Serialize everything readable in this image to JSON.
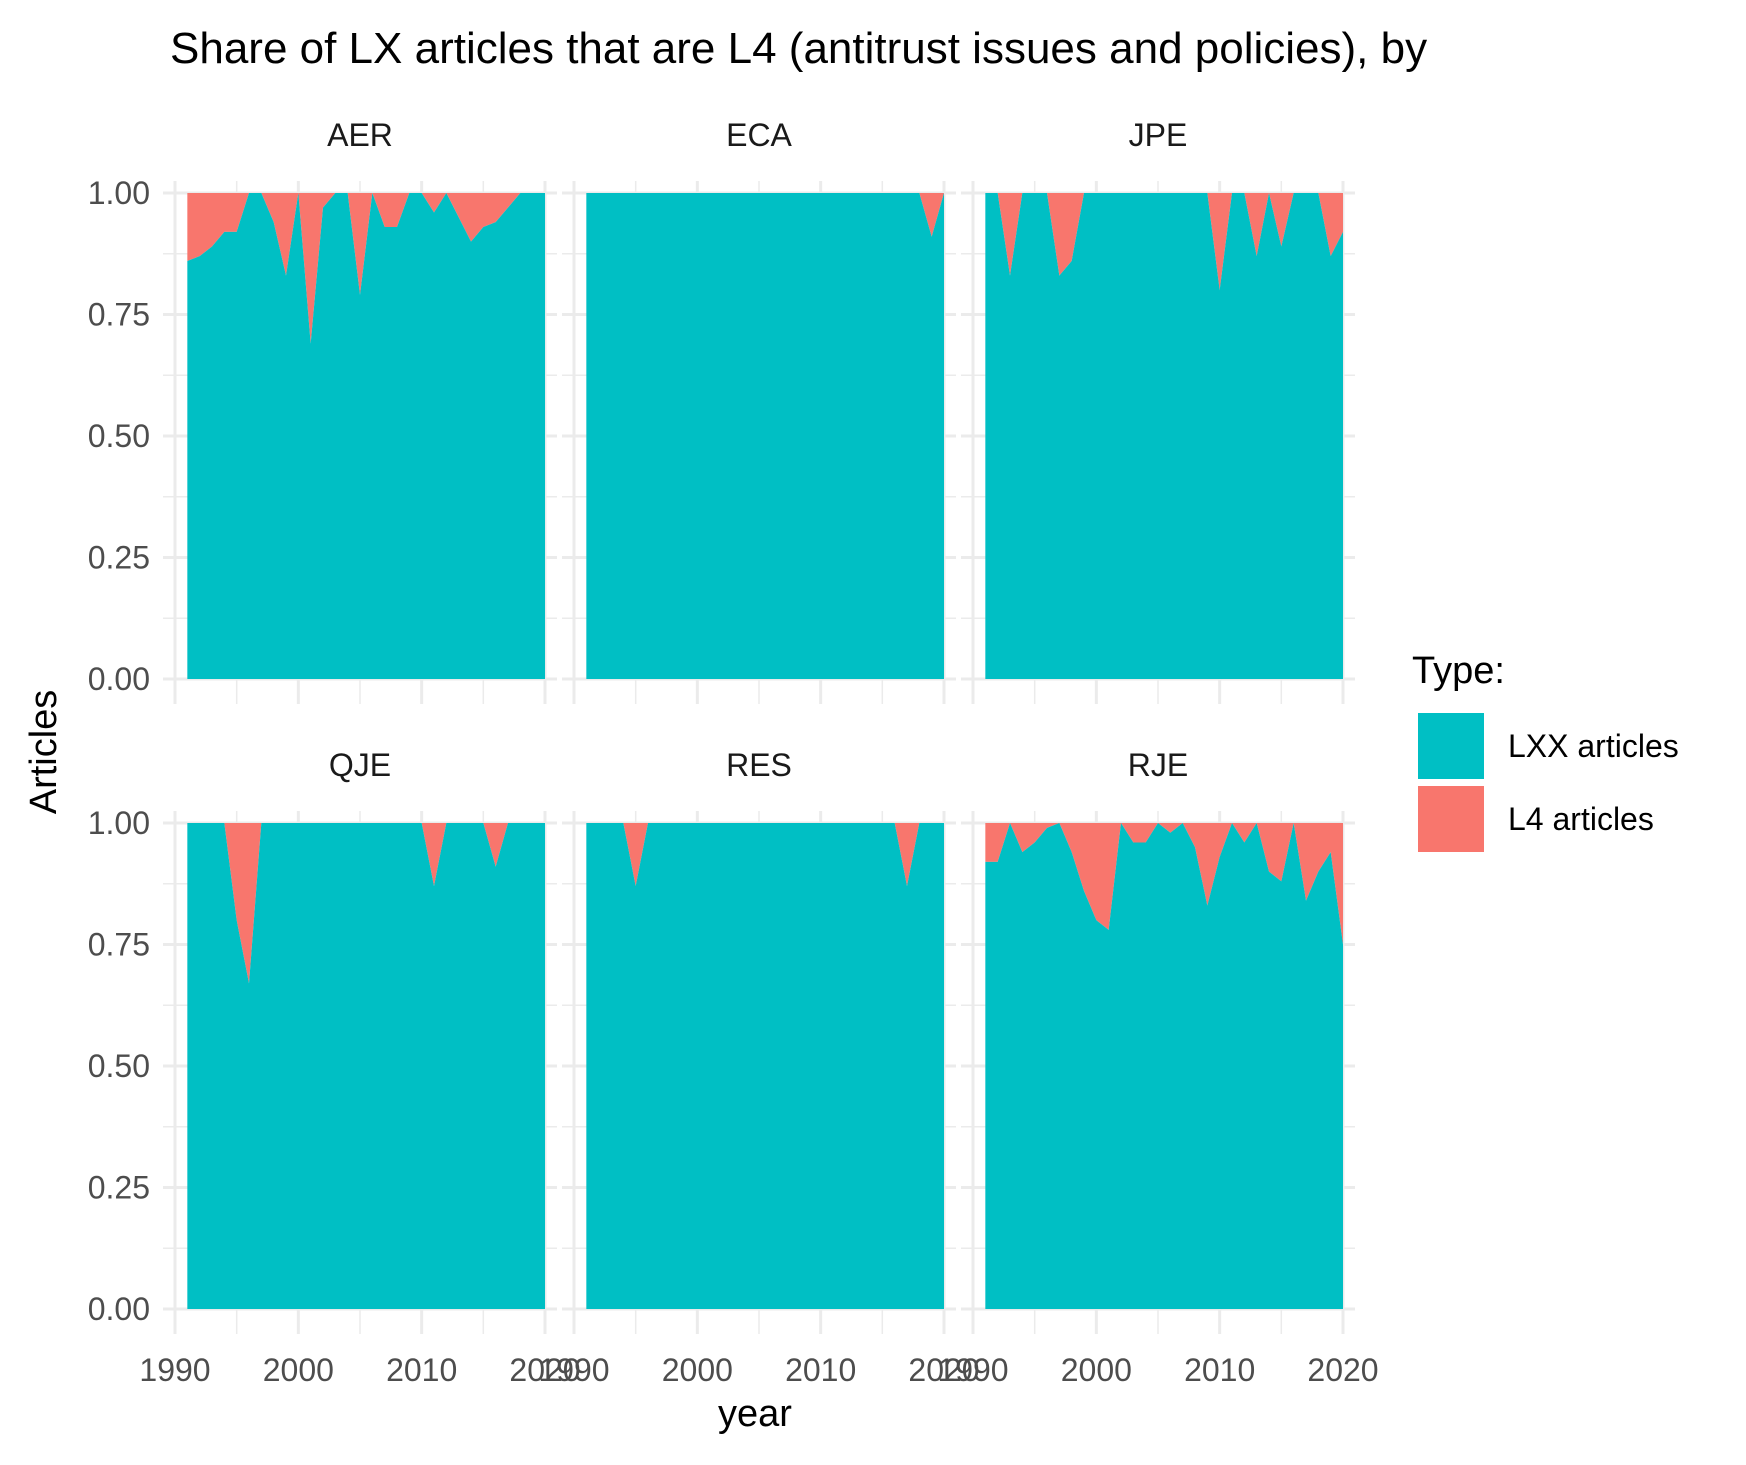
{
  "chart_data": {
    "type": "area",
    "title": "Share of LX articles that are L4 (antitrust issues and policies), by",
    "xlabel": "year",
    "ylabel": "Articles",
    "ylim": [
      0,
      1
    ],
    "xlim": [
      1990,
      2020
    ],
    "y_ticks": [
      "0.00",
      "0.25",
      "0.50",
      "0.75",
      "1.00"
    ],
    "x_ticks": [
      "1990",
      "2000",
      "2010",
      "2020"
    ],
    "grid": true,
    "colors": {
      "lxx": "#00BFC4",
      "l4": "#F8766D",
      "grid": "#EBEBEB"
    },
    "legend": {
      "title": "Type:",
      "position": "right",
      "items": [
        {
          "label": "LXX articles",
          "color": "#00BFC4"
        },
        {
          "label": "L4 articles",
          "color": "#F8766D"
        }
      ]
    },
    "years": [
      1991,
      1992,
      1993,
      1994,
      1995,
      1996,
      1997,
      1998,
      1999,
      2000,
      2001,
      2002,
      2003,
      2004,
      2005,
      2006,
      2007,
      2008,
      2009,
      2010,
      2011,
      2012,
      2013,
      2014,
      2015,
      2016,
      2017,
      2018,
      2019,
      2020
    ],
    "panels": [
      {
        "name": "AER",
        "lxx_share": [
          0.86,
          0.87,
          0.89,
          0.92,
          0.92,
          1.0,
          1.0,
          0.94,
          0.83,
          1.0,
          0.69,
          0.97,
          1.0,
          1.0,
          0.79,
          1.0,
          0.93,
          0.93,
          1.0,
          1.0,
          0.96,
          1.0,
          0.95,
          0.9,
          0.93,
          0.94,
          0.97,
          1.0,
          1.0,
          1.0
        ]
      },
      {
        "name": "ECA",
        "lxx_share": [
          1.0,
          1.0,
          1.0,
          1.0,
          1.0,
          1.0,
          1.0,
          1.0,
          1.0,
          1.0,
          1.0,
          1.0,
          1.0,
          1.0,
          1.0,
          1.0,
          1.0,
          1.0,
          1.0,
          1.0,
          1.0,
          1.0,
          1.0,
          1.0,
          1.0,
          1.0,
          1.0,
          1.0,
          0.91,
          1.0
        ]
      },
      {
        "name": "JPE",
        "lxx_share": [
          1.0,
          1.0,
          0.83,
          1.0,
          1.0,
          1.0,
          0.83,
          0.86,
          1.0,
          1.0,
          1.0,
          1.0,
          1.0,
          1.0,
          1.0,
          1.0,
          1.0,
          1.0,
          1.0,
          0.8,
          1.0,
          1.0,
          0.87,
          1.0,
          0.89,
          1.0,
          1.0,
          1.0,
          0.87,
          0.92
        ]
      },
      {
        "name": "QJE",
        "lxx_share": [
          1.0,
          1.0,
          1.0,
          1.0,
          0.8,
          0.67,
          1.0,
          1.0,
          1.0,
          1.0,
          1.0,
          1.0,
          1.0,
          1.0,
          1.0,
          1.0,
          1.0,
          1.0,
          1.0,
          1.0,
          0.87,
          1.0,
          1.0,
          1.0,
          1.0,
          0.91,
          1.0,
          1.0,
          1.0,
          1.0
        ]
      },
      {
        "name": "RES",
        "lxx_share": [
          1.0,
          1.0,
          1.0,
          1.0,
          0.87,
          1.0,
          1.0,
          1.0,
          1.0,
          1.0,
          1.0,
          1.0,
          1.0,
          1.0,
          1.0,
          1.0,
          1.0,
          1.0,
          1.0,
          1.0,
          1.0,
          1.0,
          1.0,
          1.0,
          1.0,
          1.0,
          0.87,
          1.0,
          1.0,
          1.0
        ]
      },
      {
        "name": "RJE",
        "lxx_share": [
          0.92,
          0.92,
          1.0,
          0.94,
          0.96,
          0.99,
          1.0,
          0.94,
          0.86,
          0.8,
          0.78,
          1.0,
          0.96,
          0.96,
          1.0,
          0.98,
          1.0,
          0.95,
          0.83,
          0.93,
          1.0,
          0.96,
          1.0,
          0.9,
          0.88,
          1.0,
          0.84,
          0.9,
          0.94,
          0.75
        ]
      }
    ]
  }
}
